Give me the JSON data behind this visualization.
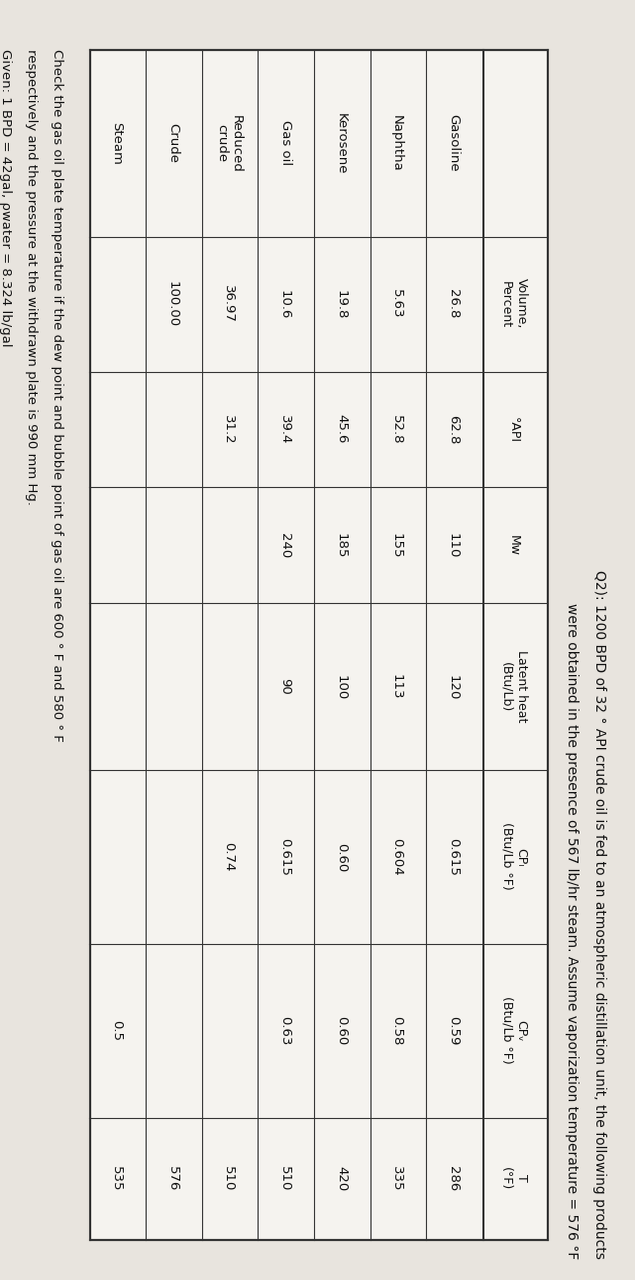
{
  "title_line1": "Q2): 1200 BPD of 32 ° API crude oil is fed to an atmospheric distillation unit, the following products",
  "title_line2": "were obtained in the presence of 567 lb/hr steam. Assume vaporization temperature = 576 °F",
  "col_headers_row1": [
    "Volume,",
    "°API",
    "Mw",
    "Latent heat",
    "CPₗ",
    "CPᵥ",
    "T"
  ],
  "col_headers_row2": [
    "Percent",
    "",
    "",
    "(Btu/Lb)",
    "(Btu/Lb °F)",
    "(Btu/Lb °F)",
    "(°F)"
  ],
  "rows": [
    [
      "Gasoline",
      "26.8",
      "62.8",
      "110",
      "120",
      "0.615",
      "0.59",
      "286"
    ],
    [
      "Naphtha",
      "5.63",
      "52.8",
      "155",
      "113",
      "0.604",
      "0.58",
      "335"
    ],
    [
      "Kerosene",
      "19.8",
      "45.6",
      "185",
      "100",
      "0.60",
      "0.60",
      "420"
    ],
    [
      "Gas oil",
      "10.6",
      "39.4",
      "240",
      "90",
      "0.615",
      "0.63",
      "510"
    ],
    [
      "Reduced\ncrude",
      "36.97",
      "31.2",
      "",
      "",
      "0.74",
      "",
      "510"
    ],
    [
      "Crude",
      "100.00",
      "",
      "",
      "",
      "",
      "",
      "576"
    ],
    [
      "Steam",
      "",
      "",
      "",
      "",
      "",
      "0.5",
      "535"
    ]
  ],
  "footnote_line1": "Check the gas oil plate temperature if the dew point and bubble point of gas oil are 600 ° F and 580 ° F",
  "footnote_line2": "respectively and the pressure at the withdrawn plate is 990 mm Hg.",
  "footnote_line3": "Given: 1 BPD = 42gal, ρwater = 8.324 lb/gal",
  "bg_color": "#e8e4de",
  "table_bg": "#f5f3ef",
  "border_color": "#333333",
  "text_color": "#111111"
}
